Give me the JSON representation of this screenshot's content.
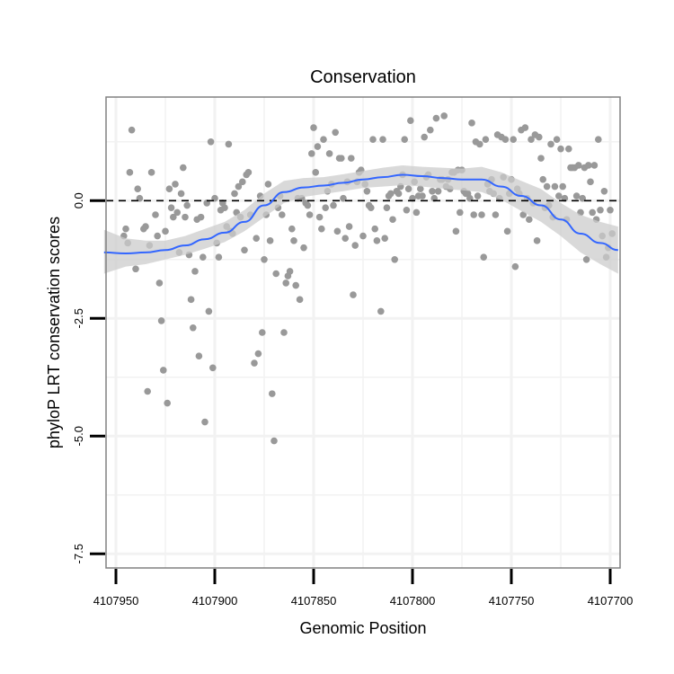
{
  "chart_data": {
    "type": "scatter",
    "title": "Conservation",
    "xlabel": "Genomic Position",
    "ylabel": "phyloP LRT conservation scores",
    "x_reversed": true,
    "xlim": [
      4107955,
      4107695
    ],
    "ylim": [
      -7.8,
      2.2
    ],
    "x_ticks": [
      4107950,
      4107900,
      4107850,
      4107800,
      4107750,
      4107700
    ],
    "x_tick_labels": [
      "4107950",
      "4107900",
      "4107850",
      "4107800",
      "4107750",
      "4107700"
    ],
    "y_ticks": [
      0.0,
      -2.5,
      -5.0,
      -7.5
    ],
    "y_tick_labels": [
      "0.0",
      "-2.5",
      "-5.0",
      "-7.5"
    ],
    "reference_line": {
      "y": 0,
      "style": "dashed",
      "color": "#000000"
    },
    "grid": true,
    "colors": {
      "points": "#999999",
      "smooth_line": "#3366ff",
      "confidence_band": "#cccccc",
      "panel_border": "#808080",
      "grid": "#f2f2f2"
    },
    "points": [
      [
        4107946,
        -0.75
      ],
      [
        4107945,
        -0.6
      ],
      [
        4107944,
        -0.9
      ],
      [
        4107943,
        0.6
      ],
      [
        4107942,
        1.5
      ],
      [
        4107940,
        -1.45
      ],
      [
        4107939,
        0.25
      ],
      [
        4107938,
        0.05
      ],
      [
        4107936,
        -0.6
      ],
      [
        4107935,
        -0.55
      ],
      [
        4107934,
        -4.05
      ],
      [
        4107933,
        -0.95
      ],
      [
        4107932,
        0.6
      ],
      [
        4107930,
        -0.3
      ],
      [
        4107929,
        -0.75
      ],
      [
        4107928,
        -1.75
      ],
      [
        4107927,
        -2.55
      ],
      [
        4107926,
        -3.6
      ],
      [
        4107925,
        -0.65
      ],
      [
        4107924,
        -4.3
      ],
      [
        4107923,
        0.25
      ],
      [
        4107922,
        -0.15
      ],
      [
        4107921,
        -0.35
      ],
      [
        4107920,
        0.35
      ],
      [
        4107919,
        -0.25
      ],
      [
        4107918,
        -1.1
      ],
      [
        4107917,
        0.15
      ],
      [
        4107916,
        0.7
      ],
      [
        4107915,
        -0.35
      ],
      [
        4107914,
        -0.1
      ],
      [
        4107913,
        -1.15
      ],
      [
        4107912,
        -2.1
      ],
      [
        4107911,
        -2.7
      ],
      [
        4107910,
        -1.5
      ],
      [
        4107909,
        -0.4
      ],
      [
        4107908,
        -3.3
      ],
      [
        4107907,
        -0.35
      ],
      [
        4107906,
        -1.2
      ],
      [
        4107905,
        -4.7
      ],
      [
        4107904,
        -0.05
      ],
      [
        4107903,
        -2.35
      ],
      [
        4107902,
        1.25
      ],
      [
        4107901,
        -3.55
      ],
      [
        4107900,
        0.05
      ],
      [
        4107899,
        -0.9
      ],
      [
        4107898,
        -1.2
      ],
      [
        4107897,
        -0.2
      ],
      [
        4107896,
        -0.05
      ],
      [
        4107895,
        -0.15
      ],
      [
        4107894,
        -0.55
      ],
      [
        4107893,
        1.2
      ],
      [
        4107892,
        -0.65
      ],
      [
        4107891,
        -0.7
      ],
      [
        4107890,
        0.15
      ],
      [
        4107889,
        -0.25
      ],
      [
        4107888,
        0.3
      ],
      [
        4107887,
        -0.35
      ],
      [
        4107886,
        0.4
      ],
      [
        4107885,
        -1.05
      ],
      [
        4107884,
        0.55
      ],
      [
        4107883,
        0.6
      ],
      [
        4107882,
        -0.3
      ],
      [
        4107880,
        -3.45
      ],
      [
        4107879,
        -0.8
      ],
      [
        4107878,
        -3.25
      ],
      [
        4107877,
        0.1
      ],
      [
        4107876,
        -2.8
      ],
      [
        4107875,
        -1.25
      ],
      [
        4107874,
        -0.3
      ],
      [
        4107873,
        0.35
      ],
      [
        4107872,
        -0.85
      ],
      [
        4107871,
        -4.1
      ],
      [
        4107870,
        -5.1
      ],
      [
        4107869,
        -1.55
      ],
      [
        4107868,
        -0.15
      ],
      [
        4107867,
        0.1
      ],
      [
        4107866,
        -0.3
      ],
      [
        4107865,
        -2.8
      ],
      [
        4107864,
        -1.75
      ],
      [
        4107863,
        -1.6
      ],
      [
        4107862,
        -1.5
      ],
      [
        4107861,
        -0.6
      ],
      [
        4107860,
        -0.85
      ],
      [
        4107859,
        -1.8
      ],
      [
        4107858,
        0.05
      ],
      [
        4107857,
        -2.1
      ],
      [
        4107856,
        0.05
      ],
      [
        4107855,
        -1.0
      ],
      [
        4107854,
        -0.05
      ],
      [
        4107853,
        -0.1
      ],
      [
        4107852,
        -0.3
      ],
      [
        4107851,
        1.0
      ],
      [
        4107850,
        1.55
      ],
      [
        4107849,
        0.6
      ],
      [
        4107848,
        1.15
      ],
      [
        4107847,
        -0.35
      ],
      [
        4107846,
        -0.6
      ],
      [
        4107845,
        1.3
      ],
      [
        4107844,
        -0.15
      ],
      [
        4107843,
        0.2
      ],
      [
        4107842,
        1.0
      ],
      [
        4107841,
        0.35
      ],
      [
        4107840,
        -0.1
      ],
      [
        4107839,
        1.45
      ],
      [
        4107838,
        -0.65
      ],
      [
        4107837,
        0.9
      ],
      [
        4107836,
        0.9
      ],
      [
        4107835,
        0.05
      ],
      [
        4107834,
        -0.8
      ],
      [
        4107833,
        0.4
      ],
      [
        4107832,
        -0.55
      ],
      [
        4107831,
        0.9
      ],
      [
        4107830,
        -2.0
      ],
      [
        4107829,
        -0.95
      ],
      [
        4107828,
        0.4
      ],
      [
        4107827,
        0.6
      ],
      [
        4107826,
        0.65
      ],
      [
        4107825,
        -0.75
      ],
      [
        4107824,
        0.35
      ],
      [
        4107823,
        0.2
      ],
      [
        4107822,
        -0.1
      ],
      [
        4107821,
        -0.15
      ],
      [
        4107820,
        1.3
      ],
      [
        4107819,
        -0.6
      ],
      [
        4107818,
        -0.85
      ],
      [
        4107816,
        -2.35
      ],
      [
        4107815,
        1.3
      ],
      [
        4107814,
        -0.8
      ],
      [
        4107813,
        -0.15
      ],
      [
        4107812,
        0.1
      ],
      [
        4107811,
        0.15
      ],
      [
        4107810,
        -0.4
      ],
      [
        4107809,
        -1.25
      ],
      [
        4107808,
        0.2
      ],
      [
        4107807,
        0.15
      ],
      [
        4107806,
        0.3
      ],
      [
        4107805,
        0.55
      ],
      [
        4107804,
        1.3
      ],
      [
        4107803,
        -0.2
      ],
      [
        4107802,
        0.25
      ],
      [
        4107801,
        1.7
      ],
      [
        4107800,
        0.05
      ],
      [
        4107799,
        0.4
      ],
      [
        4107798,
        -0.25
      ],
      [
        4107797,
        0.1
      ],
      [
        4107796,
        0.25
      ],
      [
        4107795,
        0.1
      ],
      [
        4107794,
        1.35
      ],
      [
        4107793,
        0.5
      ],
      [
        4107792,
        0.55
      ],
      [
        4107791,
        1.5
      ],
      [
        4107790,
        0.2
      ],
      [
        4107789,
        0.05
      ],
      [
        4107788,
        1.75
      ],
      [
        4107787,
        0.2
      ],
      [
        4107786,
        0.45
      ],
      [
        4107785,
        0.45
      ],
      [
        4107784,
        1.8
      ],
      [
        4107783,
        0.3
      ],
      [
        4107782,
        0.45
      ],
      [
        4107781,
        0.25
      ],
      [
        4107780,
        0.6
      ],
      [
        4107779,
        0.6
      ],
      [
        4107778,
        -0.65
      ],
      [
        4107777,
        0.65
      ],
      [
        4107776,
        -0.25
      ],
      [
        4107775,
        0.65
      ],
      [
        4107774,
        0.2
      ],
      [
        4107773,
        0.15
      ],
      [
        4107772,
        0.15
      ],
      [
        4107771,
        0.05
      ],
      [
        4107770,
        1.65
      ],
      [
        4107769,
        -0.3
      ],
      [
        4107768,
        1.25
      ],
      [
        4107767,
        0.1
      ],
      [
        4107766,
        1.2
      ],
      [
        4107765,
        -0.3
      ],
      [
        4107764,
        -1.2
      ],
      [
        4107763,
        1.3
      ],
      [
        4107762,
        0.35
      ],
      [
        4107761,
        0.2
      ],
      [
        4107760,
        0.45
      ],
      [
        4107759,
        0.15
      ],
      [
        4107758,
        -0.3
      ],
      [
        4107757,
        1.4
      ],
      [
        4107756,
        0.05
      ],
      [
        4107755,
        1.35
      ],
      [
        4107754,
        0.5
      ],
      [
        4107753,
        1.3
      ],
      [
        4107752,
        -0.65
      ],
      [
        4107751,
        0.15
      ],
      [
        4107750,
        0.45
      ],
      [
        4107749,
        1.3
      ],
      [
        4107748,
        -1.4
      ],
      [
        4107747,
        0.25
      ],
      [
        4107746,
        0.15
      ],
      [
        4107745,
        1.5
      ],
      [
        4107744,
        -0.3
      ],
      [
        4107743,
        1.55
      ],
      [
        4107742,
        0.05
      ],
      [
        4107741,
        -0.4
      ],
      [
        4107740,
        1.3
      ],
      [
        4107739,
        -0.05
      ],
      [
        4107738,
        1.4
      ],
      [
        4107737,
        -0.85
      ],
      [
        4107736,
        1.35
      ],
      [
        4107735,
        0.9
      ],
      [
        4107734,
        0.45
      ],
      [
        4107733,
        -0.15
      ],
      [
        4107732,
        0.3
      ],
      [
        4107731,
        -0.1
      ],
      [
        4107730,
        1.2
      ],
      [
        4107729,
        -0.35
      ],
      [
        4107728,
        0.3
      ],
      [
        4107727,
        1.3
      ],
      [
        4107726,
        0.1
      ],
      [
        4107725,
        1.1
      ],
      [
        4107724,
        0.3
      ],
      [
        4107723,
        0.05
      ],
      [
        4107722,
        -0.4
      ],
      [
        4107721,
        1.1
      ],
      [
        4107720,
        0.7
      ],
      [
        4107719,
        0.7
      ],
      [
        4107718,
        0.7
      ],
      [
        4107717,
        0.1
      ],
      [
        4107716,
        0.75
      ],
      [
        4107715,
        -0.25
      ],
      [
        4107714,
        0.05
      ],
      [
        4107713,
        0.7
      ],
      [
        4107712,
        -1.25
      ],
      [
        4107711,
        0.75
      ],
      [
        4107710,
        0.4
      ],
      [
        4107709,
        -0.25
      ],
      [
        4107708,
        0.75
      ],
      [
        4107707,
        -0.4
      ],
      [
        4107706,
        1.3
      ],
      [
        4107705,
        -0.2
      ],
      [
        4107704,
        -0.75
      ],
      [
        4107703,
        0.2
      ],
      [
        4107702,
        -1.2
      ],
      [
        4107701,
        -1.0
      ],
      [
        4107700,
        -0.2
      ],
      [
        4107699,
        -0.7
      ]
    ],
    "smooth_line": [
      [
        4107956,
        -1.1
      ],
      [
        4107945,
        -1.12
      ],
      [
        4107935,
        -1.1
      ],
      [
        4107925,
        -1.05
      ],
      [
        4107915,
        -0.95
      ],
      [
        4107905,
        -0.82
      ],
      [
        4107895,
        -0.68
      ],
      [
        4107885,
        -0.45
      ],
      [
        4107875,
        -0.1
      ],
      [
        4107865,
        0.18
      ],
      [
        4107855,
        0.28
      ],
      [
        4107845,
        0.32
      ],
      [
        4107835,
        0.38
      ],
      [
        4107825,
        0.45
      ],
      [
        4107815,
        0.5
      ],
      [
        4107805,
        0.55
      ],
      [
        4107795,
        0.52
      ],
      [
        4107785,
        0.48
      ],
      [
        4107775,
        0.45
      ],
      [
        4107765,
        0.45
      ],
      [
        4107755,
        0.3
      ],
      [
        4107745,
        0.1
      ],
      [
        4107735,
        -0.1
      ],
      [
        4107725,
        -0.4
      ],
      [
        4107715,
        -0.7
      ],
      [
        4107705,
        -0.9
      ],
      [
        4107696,
        -1.05
      ]
    ],
    "confidence_band": [
      [
        4107956,
        -0.62,
        -1.55
      ],
      [
        4107945,
        -0.8,
        -1.4
      ],
      [
        4107935,
        -0.85,
        -1.35
      ],
      [
        4107925,
        -0.85,
        -1.25
      ],
      [
        4107915,
        -0.75,
        -1.15
      ],
      [
        4107905,
        -0.6,
        -1.02
      ],
      [
        4107895,
        -0.45,
        -0.88
      ],
      [
        4107885,
        -0.2,
        -0.65
      ],
      [
        4107875,
        0.15,
        -0.35
      ],
      [
        4107865,
        0.42,
        -0.05
      ],
      [
        4107855,
        0.48,
        0.08
      ],
      [
        4107845,
        0.5,
        0.14
      ],
      [
        4107835,
        0.56,
        0.2
      ],
      [
        4107825,
        0.63,
        0.27
      ],
      [
        4107815,
        0.7,
        0.3
      ],
      [
        4107805,
        0.75,
        0.33
      ],
      [
        4107795,
        0.72,
        0.3
      ],
      [
        4107785,
        0.7,
        0.26
      ],
      [
        4107775,
        0.68,
        0.22
      ],
      [
        4107765,
        0.72,
        0.18
      ],
      [
        4107755,
        0.6,
        0.02
      ],
      [
        4107745,
        0.42,
        -0.22
      ],
      [
        4107735,
        0.25,
        -0.45
      ],
      [
        4107725,
        -0.05,
        -0.75
      ],
      [
        4107715,
        -0.3,
        -1.1
      ],
      [
        4107705,
        -0.45,
        -1.35
      ],
      [
        4107696,
        -0.55,
        -1.55
      ]
    ]
  }
}
